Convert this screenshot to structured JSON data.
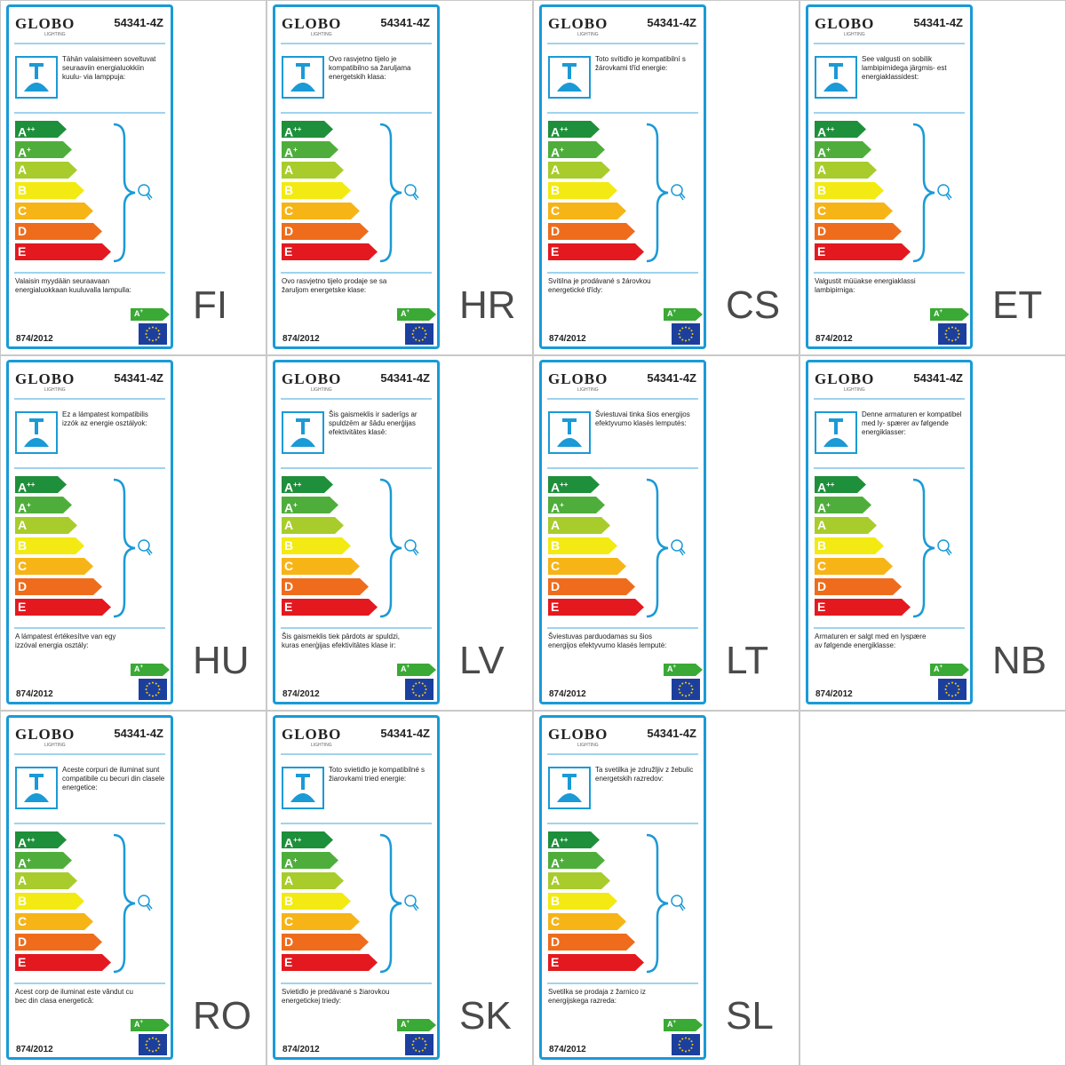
{
  "brand": "GLOBO",
  "brand_sub": "LIGHTING",
  "model": "54341-4Z",
  "regulation": "874/2012",
  "rating": {
    "letter": "A",
    "sup": "+"
  },
  "class_scale": [
    {
      "letter": "A",
      "sup": "++",
      "color": "#1e8f3a"
    },
    {
      "letter": "A",
      "sup": "+",
      "color": "#4fae3b"
    },
    {
      "letter": "A",
      "sup": "",
      "color": "#a8cc2c"
    },
    {
      "letter": "B",
      "sup": "",
      "color": "#f2ea12"
    },
    {
      "letter": "C",
      "sup": "",
      "color": "#f6b417"
    },
    {
      "letter": "D",
      "sup": "",
      "color": "#ee6c1c"
    },
    {
      "letter": "E",
      "sup": "",
      "color": "#e3191f"
    }
  ],
  "colors": {
    "frame": "#1a9ad6",
    "rating_green": "#3aa935",
    "eu_blue": "#1c3f9e",
    "eu_star": "#ffd200"
  },
  "icons": {
    "lamp": "ceiling-pendant-lamp-icon",
    "bulb": "light-bulb-icon",
    "flag": "eu-flag-icon"
  },
  "labels": [
    {
      "lang": "FI",
      "compat": "Tähän valaisimeen soveltuvat seuraaviin energialuokkiin kuulu- via lamppuja:",
      "sold": "Valaisin myydään seuraavaan energialuokkaan kuuluvalla lampulla:"
    },
    {
      "lang": "HR",
      "compat": "Ovo rasvjetno tijelo je kompatibilno sa žaruljama energetskih klasa:",
      "sold": "Ovo rasvjetno tijelo prodaje se sa žaruljom energetske klase:"
    },
    {
      "lang": "CS",
      "compat": "Toto svítidlo je kompatibilní s žárovkami tříd energie:",
      "sold": "Svítilna je prodávané s žárovkou energetické třídy:"
    },
    {
      "lang": "ET",
      "compat": "See valgusti on sobilik lambipirnidega järgmis- est energiaklassidest:",
      "sold": "Valgustit müüakse energiaklassi lambipirniga:"
    },
    {
      "lang": "HU",
      "compat": "Ez a lámpatest kompatibilis izzók az energie osztályok:",
      "sold": "A lámpatest értékesítve van egy izzóval energia osztály:"
    },
    {
      "lang": "LV",
      "compat": "Šis gaismeklis ir saderīgs ar spuldzēm ar šādu enerģijas efektivitātes klasē:",
      "sold": "Šis gaismeklis tiek pārdots ar spuldzi, kuras enerģijas efektivitātes klase ir:"
    },
    {
      "lang": "LT",
      "compat": "Šviestuvai tinka šios energijos efektyvumo klasės lemputės:",
      "sold": "Šviestuvas parduodamas su šios energijos efektyvumo klasės lemputė:"
    },
    {
      "lang": "NB",
      "compat": "Denne armaturen er kompatibel med ly- spærer av følgende energiklasser:",
      "sold": "Armaturen er salgt med en lyspære av følgende energiklasse:"
    },
    {
      "lang": "RO",
      "compat": "Aceste corpuri de iluminat sunt compatibile cu becuri din clasele energetice:",
      "sold": "Acest corp de iluminat este vândut cu bec din clasa energetică:"
    },
    {
      "lang": "SK",
      "compat": "Toto svietidlo je kompatibilné s žiarovkami tried energie:",
      "sold": "Svietidlo je predávané s žiarovkou energetickej triedy:"
    },
    {
      "lang": "SL",
      "compat": "Ta svetilka je združljiv z žebulic energetskih razredov:",
      "sold": "Svetilka se prodaja z žarnico iz energijskega razreda:"
    }
  ]
}
